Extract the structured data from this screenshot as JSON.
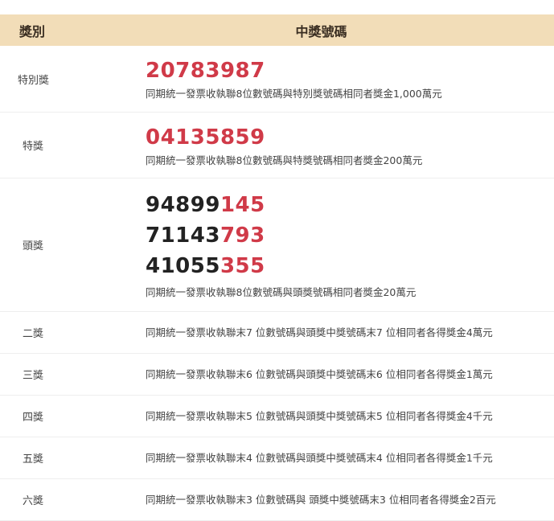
{
  "header": {
    "col_prize": "獎別",
    "col_numbers": "中獎號碼"
  },
  "colors": {
    "header_bg": "#f2ddb8",
    "highlight": "#d03a48"
  },
  "rows": [
    {
      "prize": "特別獎",
      "numbers": [
        {
          "plain": "",
          "red": "20783987"
        }
      ],
      "desc": "同期統一發票收執聯8位數號碼與特別獎號碼相同者獎金1,000萬元"
    },
    {
      "prize": "特獎",
      "numbers": [
        {
          "plain": "",
          "red": "04135859"
        }
      ],
      "desc": "同期統一發票收執聯8位數號碼與特獎號碼相同者獎金200萬元"
    },
    {
      "prize": "頭獎",
      "numbers": [
        {
          "plain": "94899",
          "red": "145"
        },
        {
          "plain": "71143",
          "red": "793"
        },
        {
          "plain": "41055",
          "red": "355"
        }
      ],
      "desc": "同期統一發票收執聯8位數號碼與頭獎號碼相同者獎金20萬元"
    },
    {
      "prize": "二獎",
      "desc": "同期統一發票收執聯末7 位數號碼與頭獎中獎號碼末7 位相同者各得獎金4萬元"
    },
    {
      "prize": "三獎",
      "desc": "同期統一發票收執聯末6 位數號碼與頭獎中獎號碼末6 位相同者各得獎金1萬元"
    },
    {
      "prize": "四獎",
      "desc": "同期統一發票收執聯末5 位數號碼與頭獎中獎號碼末5 位相同者各得獎金4千元"
    },
    {
      "prize": "五獎",
      "desc": "同期統一發票收執聯末4 位數號碼與頭獎中獎號碼末4 位相同者各得獎金1千元"
    },
    {
      "prize": "六獎",
      "desc": "同期統一發票收執聯末3 位數號碼與 頭獎中獎號碼末3 位相同者各得獎金2百元"
    }
  ]
}
